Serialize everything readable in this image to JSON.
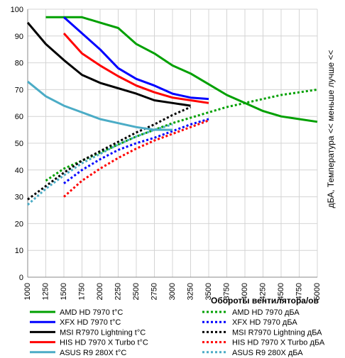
{
  "chart_data": {
    "type": "line",
    "xlabel": "Обороты вентилятора/ов",
    "ylabel": "дБА, Температура << меньше лучше <<",
    "xlim": [
      1000,
      5000
    ],
    "ylim": [
      0,
      100
    ],
    "xticks": [
      "1000",
      "1250",
      "1500",
      "1750",
      "2000",
      "2250",
      "2500",
      "2750",
      "3000",
      "3250",
      "3500",
      "3750",
      "4000",
      "4250",
      "4500",
      "4750",
      "5000"
    ],
    "yticks": [
      "0",
      "10",
      "20",
      "30",
      "40",
      "50",
      "60",
      "70",
      "80",
      "90",
      "100"
    ],
    "grid": true,
    "legend_position": "bottom",
    "series": [
      {
        "name": "AMD HD 7970 t°C",
        "color": "#00a000",
        "style": "solid",
        "x": [
          1250,
          1500,
          1750,
          2000,
          2250,
          2500,
          2750,
          3000,
          3250,
          3500,
          3750,
          4000,
          4250,
          4500,
          4750,
          5000
        ],
        "y": [
          97,
          97,
          97,
          95,
          93,
          87,
          83.5,
          79,
          76,
          72,
          68,
          65,
          62,
          60,
          59,
          58
        ]
      },
      {
        "name": "XFX HD 7970 t°C",
        "color": "#0000ff",
        "style": "solid",
        "x": [
          1500,
          1750,
          2000,
          2250,
          2500,
          2750,
          3000,
          3250,
          3500
        ],
        "y": [
          97,
          91,
          85,
          78,
          74,
          71.5,
          68.5,
          67,
          66.5
        ]
      },
      {
        "name": "MSI R7970 Lightning t°C",
        "color": "#000000",
        "style": "solid",
        "x": [
          1000,
          1250,
          1500,
          1750,
          2000,
          2250,
          2500,
          2750,
          3000,
          3250
        ],
        "y": [
          95,
          87,
          81,
          75.5,
          72.5,
          70.5,
          68.5,
          66,
          65,
          64
        ]
      },
      {
        "name": "HIS HD 7970 X Turbo t°C",
        "color": "#ff0000",
        "style": "solid",
        "x": [
          1500,
          1750,
          2000,
          2250,
          2500,
          2750,
          3000,
          3250,
          3500
        ],
        "y": [
          91,
          83.5,
          79,
          75,
          71.5,
          69,
          67,
          66,
          65
        ]
      },
      {
        "name": "ASUS R9 280X t°C",
        "color": "#4bacc6",
        "style": "solid",
        "x": [
          1000,
          1250,
          1500,
          1750,
          2000,
          2250,
          2500,
          2750,
          3000
        ],
        "y": [
          73,
          67.5,
          64,
          61.5,
          59,
          57.5,
          56,
          55,
          55
        ]
      },
      {
        "name": "AMD HD 7970 дБА",
        "color": "#00a000",
        "style": "dotted",
        "x": [
          1250,
          1500,
          1750,
          2000,
          2250,
          2500,
          2750,
          3000,
          3250,
          3500,
          3750,
          4000,
          4250,
          4500,
          4750,
          5000
        ],
        "y": [
          36,
          40.5,
          43.5,
          46.5,
          49.5,
          52.5,
          55,
          57.5,
          59.5,
          61.5,
          63.5,
          65,
          66.5,
          68,
          69,
          70
        ]
      },
      {
        "name": "XFX HD 7970 дБА",
        "color": "#0000ff",
        "style": "dotted",
        "x": [
          1500,
          1750,
          2000,
          2250,
          2500,
          2750,
          3000,
          3250,
          3500
        ],
        "y": [
          35,
          40,
          44,
          47.5,
          50,
          52,
          54.5,
          57,
          59
        ]
      },
      {
        "name": "MSI R7970 Lightning дБА",
        "color": "#000000",
        "style": "dotted",
        "x": [
          1000,
          1250,
          1500,
          1750,
          2000,
          2250,
          2500,
          2750,
          3000,
          3250
        ],
        "y": [
          29,
          34,
          39,
          43.5,
          47,
          50.5,
          54,
          57,
          60.5,
          63.5
        ]
      },
      {
        "name": "HIS HD 7970 X Turbo дБА",
        "color": "#ff0000",
        "style": "dotted",
        "x": [
          1500,
          1750,
          2000,
          2250,
          2500,
          2750,
          3000,
          3250,
          3500
        ],
        "y": [
          30,
          36,
          40.5,
          44.5,
          48,
          51,
          53.5,
          56,
          58.5
        ]
      },
      {
        "name": "ASUS R9 280X дБА",
        "color": "#4bacc6",
        "style": "dotted",
        "x": [
          1000,
          1250,
          1500,
          1750,
          2000,
          2250,
          2500,
          2750,
          3000
        ],
        "y": [
          27,
          33,
          38,
          42.5,
          46,
          49.5,
          52.5,
          55,
          57
        ]
      }
    ]
  }
}
